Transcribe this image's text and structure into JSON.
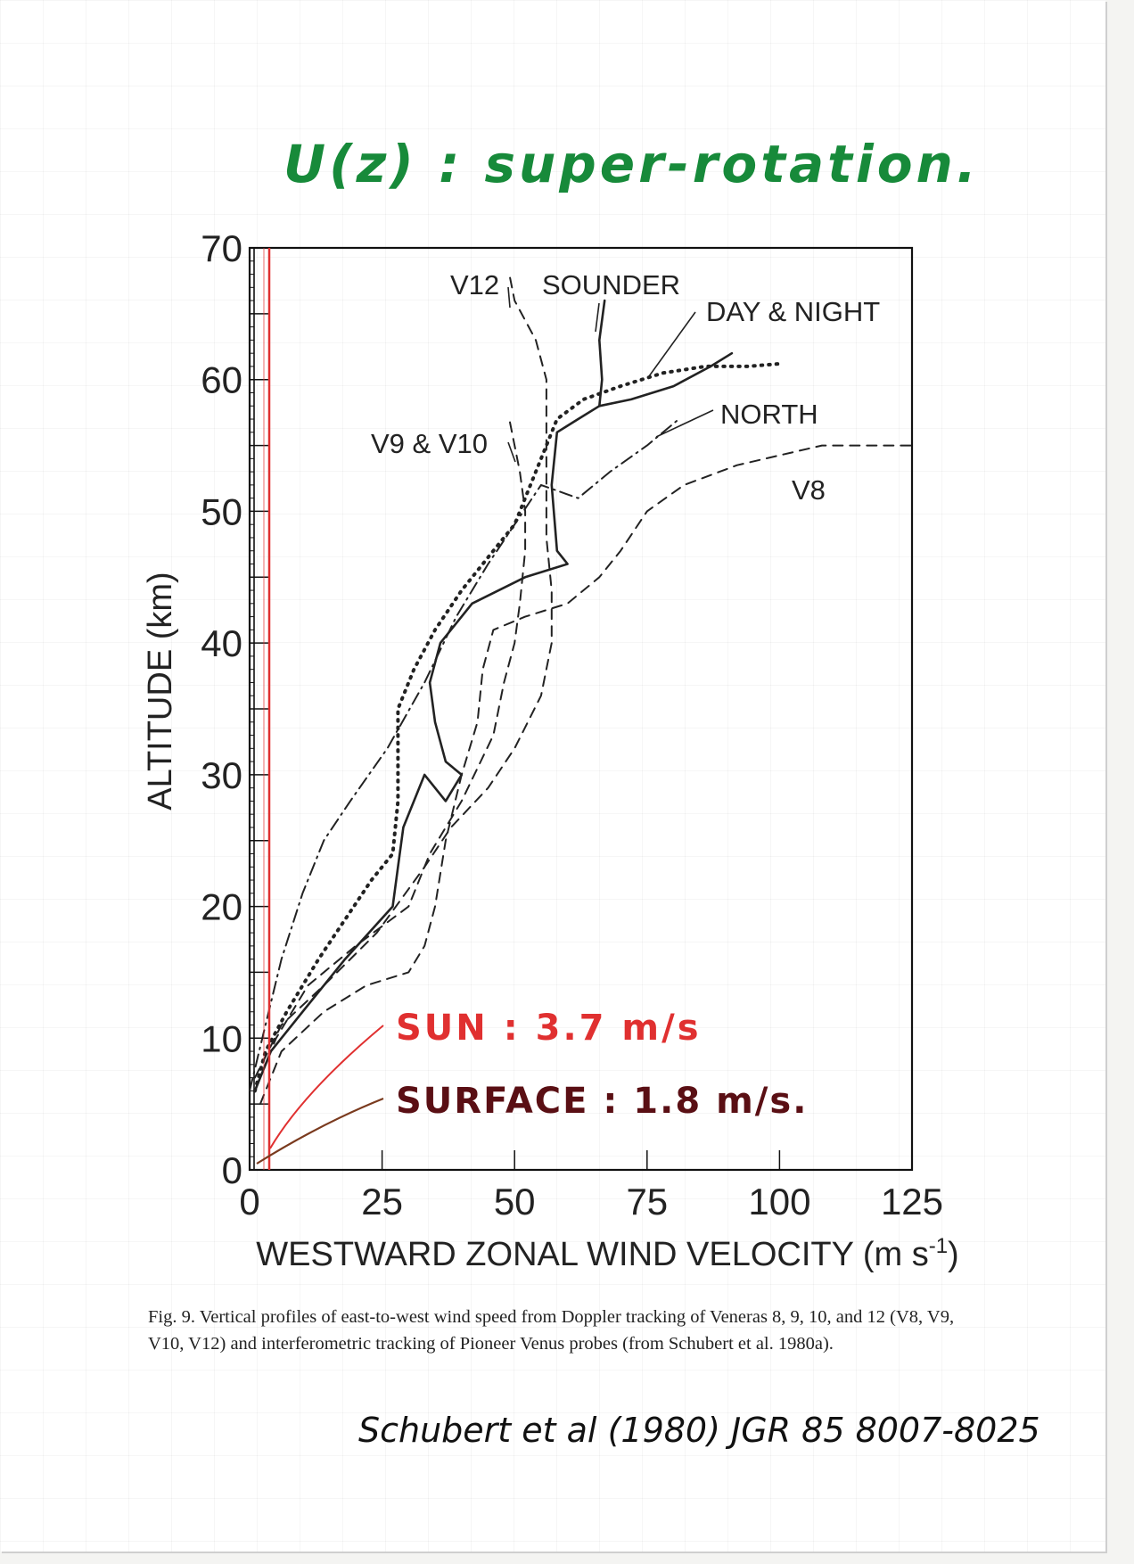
{
  "handwritten_title": "U(z) : super-rotation.",
  "handwritten_citation": "Schubert et al (1980) JGR 85 8007-8025",
  "caption": "Fig. 9. Vertical profiles of east-to-west wind speed from Doppler tracking of Veneras 8, 9, 10, and 12 (V8, V9, V10, V12) and interferometric tracking of Pioneer Venus probes (from Schubert et al. 1980a).",
  "chart_data": {
    "type": "line",
    "title": "",
    "xlabel": "WESTWARD ZONAL WIND VELOCITY (m s",
    "xlabel_sup": "-1",
    "xlabel_end": ")",
    "ylabel": "ALTITUDE (km)",
    "xlim": [
      0,
      125
    ],
    "ylim": [
      0,
      70
    ],
    "xticks": [
      "0",
      "25",
      "50",
      "75",
      "100",
      "125"
    ],
    "yticks": [
      "0",
      "10",
      "20",
      "30",
      "40",
      "50",
      "60",
      "70"
    ],
    "grid": false,
    "series": [
      {
        "name": "SOUNDER",
        "style": "solid",
        "points": [
          [
            1,
            6
          ],
          [
            4,
            9
          ],
          [
            10,
            12
          ],
          [
            18,
            16
          ],
          [
            27,
            20
          ],
          [
            28,
            23
          ],
          [
            29,
            26
          ],
          [
            33,
            30
          ],
          [
            37,
            28
          ],
          [
            40,
            30
          ],
          [
            37,
            31
          ],
          [
            35,
            34
          ],
          [
            34,
            37
          ],
          [
            36,
            40
          ],
          [
            42,
            43
          ],
          [
            52,
            45
          ],
          [
            60,
            46
          ],
          [
            58,
            47
          ],
          [
            57,
            52
          ],
          [
            58,
            56
          ],
          [
            62,
            57
          ],
          [
            66,
            58
          ],
          [
            72,
            58.5
          ],
          [
            80,
            59.5
          ],
          [
            87,
            61
          ],
          [
            91,
            62
          ]
        ]
      },
      {
        "name": "SOUNDER",
        "style": "solid",
        "points": [
          [
            66,
            58
          ],
          [
            66.5,
            60
          ],
          [
            66,
            63
          ],
          [
            67,
            66
          ]
        ]
      },
      {
        "name": "DAY & NIGHT",
        "style": "dotted",
        "points": [
          [
            1,
            6
          ],
          [
            3,
            9
          ],
          [
            7,
            12
          ],
          [
            13,
            16
          ],
          [
            18,
            19
          ],
          [
            23,
            22
          ],
          [
            27,
            24
          ],
          [
            28,
            28
          ],
          [
            28,
            32
          ],
          [
            28,
            35
          ],
          [
            31,
            38
          ],
          [
            35,
            41
          ],
          [
            40,
            44
          ],
          [
            46,
            47
          ],
          [
            50,
            49
          ],
          [
            53,
            52
          ],
          [
            56,
            55
          ],
          [
            58,
            57
          ],
          [
            63,
            58.5
          ],
          [
            70,
            59.5
          ],
          [
            78,
            60.5
          ],
          [
            86,
            61
          ],
          [
            94,
            61
          ],
          [
            100,
            61.2
          ]
        ]
      },
      {
        "name": "NORTH",
        "style": "dashdot",
        "points": [
          [
            0,
            6
          ],
          [
            3,
            11
          ],
          [
            6,
            16
          ],
          [
            10,
            21
          ],
          [
            14,
            25
          ],
          [
            19,
            28
          ],
          [
            26,
            32
          ],
          [
            33,
            37
          ],
          [
            39,
            42
          ],
          [
            45,
            46
          ],
          [
            50,
            49
          ],
          [
            55,
            52
          ],
          [
            62,
            51
          ],
          [
            68,
            53
          ],
          [
            75,
            55
          ],
          [
            81,
            57
          ]
        ]
      },
      {
        "name": "V9 & V10",
        "style": "dashed",
        "points": [
          [
            1,
            6
          ],
          [
            5,
            10
          ],
          [
            11,
            14
          ],
          [
            20,
            17
          ],
          [
            30,
            20
          ],
          [
            34,
            24
          ],
          [
            40,
            28
          ],
          [
            46,
            33
          ],
          [
            48,
            37
          ],
          [
            50,
            40
          ],
          [
            51,
            43
          ],
          [
            52,
            47
          ],
          [
            52,
            50
          ],
          [
            51,
            53
          ],
          [
            49,
            57
          ]
        ]
      },
      {
        "name": "V12",
        "style": "dashed",
        "points": [
          [
            1,
            7
          ],
          [
            6,
            11
          ],
          [
            14,
            14
          ],
          [
            24,
            18
          ],
          [
            33,
            23
          ],
          [
            38,
            26
          ],
          [
            45,
            29
          ],
          [
            50,
            32
          ],
          [
            55,
            36
          ],
          [
            57,
            40
          ],
          [
            57,
            44
          ],
          [
            56,
            48
          ],
          [
            56,
            52
          ],
          [
            56,
            56
          ],
          [
            56,
            60
          ],
          [
            54,
            63
          ],
          [
            50,
            66
          ],
          [
            49,
            68
          ]
        ]
      },
      {
        "name": "V8",
        "style": "dashed",
        "points": [
          [
            2,
            5
          ],
          [
            6,
            9
          ],
          [
            14,
            12
          ],
          [
            22,
            14
          ],
          [
            30,
            15
          ],
          [
            33,
            17
          ],
          [
            35,
            20
          ],
          [
            37,
            25
          ],
          [
            40,
            30
          ],
          [
            43,
            34
          ],
          [
            44,
            38
          ],
          [
            46,
            41
          ],
          [
            52,
            42
          ],
          [
            60,
            43
          ],
          [
            66,
            45
          ],
          [
            70,
            47
          ],
          [
            75,
            50
          ],
          [
            82,
            52
          ],
          [
            92,
            53.5
          ],
          [
            108,
            55
          ],
          [
            125,
            55
          ]
        ]
      }
    ],
    "labels": [
      {
        "text": "V12",
        "series": "V12"
      },
      {
        "text": "SOUNDER",
        "series": "SOUNDER"
      },
      {
        "text": "DAY & NIGHT",
        "series": "DAY & NIGHT"
      },
      {
        "text": "NORTH",
        "series": "NORTH"
      },
      {
        "text": "V9 & V10",
        "series": "V9 & V10"
      },
      {
        "text": "V8",
        "series": "V8"
      }
    ],
    "annotations": [
      {
        "text": "SUN : 3.7 m/s",
        "color": "#e03030",
        "value_ms": 3.7
      },
      {
        "text": "SURFACE : 1.8 m/s.",
        "color": "#5a0f14",
        "value_ms": 1.8
      }
    ],
    "reference_line": {
      "x": 3.7,
      "color": "#e03030"
    }
  }
}
